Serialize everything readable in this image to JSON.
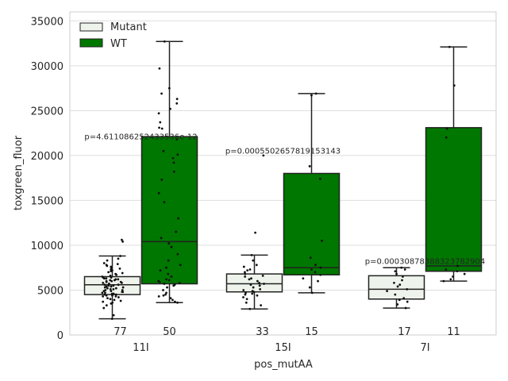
{
  "chart_data": {
    "type": "box",
    "xlabel": "pos_mutAA",
    "ylabel": "toxgreen_fluor",
    "categories": [
      "11I",
      "15I",
      "7I"
    ],
    "ylim": [
      0,
      36000
    ],
    "yticks": [
      0,
      5000,
      10000,
      15000,
      20000,
      25000,
      30000,
      35000
    ],
    "grid": true,
    "legend": {
      "placement": "top-left",
      "entries": [
        {
          "label": "Mutant",
          "color": "#eef4ec"
        },
        {
          "label": "WT",
          "color": "#007700"
        }
      ]
    },
    "series": [
      {
        "name": "Mutant",
        "color": "#eef4ec",
        "boxes": [
          {
            "category": "11I",
            "whislo": 1800,
            "q1": 4500,
            "med": 5600,
            "q3": 6500,
            "whishi": 8800,
            "n": "77"
          },
          {
            "category": "15I",
            "whislo": 2900,
            "q1": 4800,
            "med": 5700,
            "q3": 6800,
            "whishi": 8900,
            "n": "33"
          },
          {
            "category": "7I",
            "whislo": 3000,
            "q1": 4000,
            "med": 5100,
            "q3": 6600,
            "whishi": 7500,
            "n": "17"
          }
        ]
      },
      {
        "name": "WT",
        "color": "#007700",
        "boxes": [
          {
            "category": "11I",
            "whislo": 3600,
            "q1": 5700,
            "med": 10400,
            "q3": 22100,
            "whishi": 32700,
            "n": "50"
          },
          {
            "category": "15I",
            "whislo": 4700,
            "q1": 6700,
            "med": 7500,
            "q3": 18000,
            "whishi": 26900,
            "n": "15"
          },
          {
            "category": "7I",
            "whislo": 6000,
            "q1": 7100,
            "med": 7700,
            "q3": 23100,
            "whishi": 32100,
            "n": "11"
          }
        ]
      }
    ],
    "annotations": [
      {
        "category": "11I",
        "text": "p=4.611086252433536e-12",
        "y": 21800
      },
      {
        "category": "15I",
        "text": "p=0.0005502657819153143",
        "y": 20200
      },
      {
        "category": "7I",
        "text": "p=0.00030878388323782904",
        "y": 7900
      }
    ],
    "points": {
      "11I": {
        "Mutant": [
          1800,
          2200,
          3000,
          3300,
          3500,
          3600,
          3700,
          3800,
          3900,
          4000,
          4100,
          4200,
          4300,
          4300,
          4400,
          4400,
          4500,
          4500,
          4600,
          4600,
          4700,
          4700,
          4800,
          4800,
          4900,
          4900,
          5000,
          5000,
          5100,
          5100,
          5200,
          5200,
          5300,
          5300,
          5400,
          5400,
          5500,
          5500,
          5600,
          5600,
          5700,
          5700,
          5800,
          5800,
          5900,
          5900,
          6000,
          6000,
          6100,
          6100,
          6200,
          6200,
          6300,
          6300,
          6400,
          6400,
          6500,
          6600,
          6700,
          6800,
          6900,
          7000,
          7100,
          7200,
          7300,
          7400,
          7500,
          7600,
          7700,
          7800,
          7900,
          8000,
          8300,
          8500,
          8800,
          10400,
          10600
        ],
        "WT": [
          3600,
          3700,
          3900,
          4100,
          4300,
          4500,
          4700,
          5000,
          5300,
          5500,
          5600,
          5700,
          5800,
          6000,
          6200,
          6500,
          6800,
          7200,
          7800,
          8300,
          9000,
          9800,
          10200,
          10800,
          11500,
          13000,
          14800,
          15800,
          17300,
          18200,
          19200,
          19700,
          20100,
          20500,
          21800,
          23000,
          23100,
          23700,
          24700,
          25200,
          25800,
          26300,
          26900,
          27500,
          29700,
          32700,
          6100,
          5900,
          7500,
          4400
        ]
      },
      "15I": {
        "Mutant": [
          2900,
          3300,
          3600,
          4000,
          4200,
          4400,
          4500,
          4600,
          4700,
          4800,
          4900,
          5000,
          5100,
          5300,
          5500,
          5600,
          5700,
          5800,
          6000,
          6200,
          6300,
          6500,
          6600,
          6800,
          7000,
          7200,
          7300,
          7600,
          7800,
          8300,
          8900,
          11400,
          20000
        ],
        "WT": [
          4700,
          5300,
          6300,
          6700,
          7000,
          7300,
          7500,
          7800,
          8600,
          10500,
          17400,
          18800,
          26700,
          26900,
          6000
        ]
      },
      "7I": {
        "Mutant": [
          3000,
          3400,
          3700,
          3900,
          4100,
          4500,
          4900,
          5100,
          5400,
          5600,
          5800,
          6100,
          6500,
          6800,
          7100,
          7300,
          7500
        ],
        "WT": [
          6000,
          6200,
          6500,
          6800,
          7100,
          7300,
          7700,
          22000,
          23000,
          27800,
          32100
        ]
      }
    }
  }
}
